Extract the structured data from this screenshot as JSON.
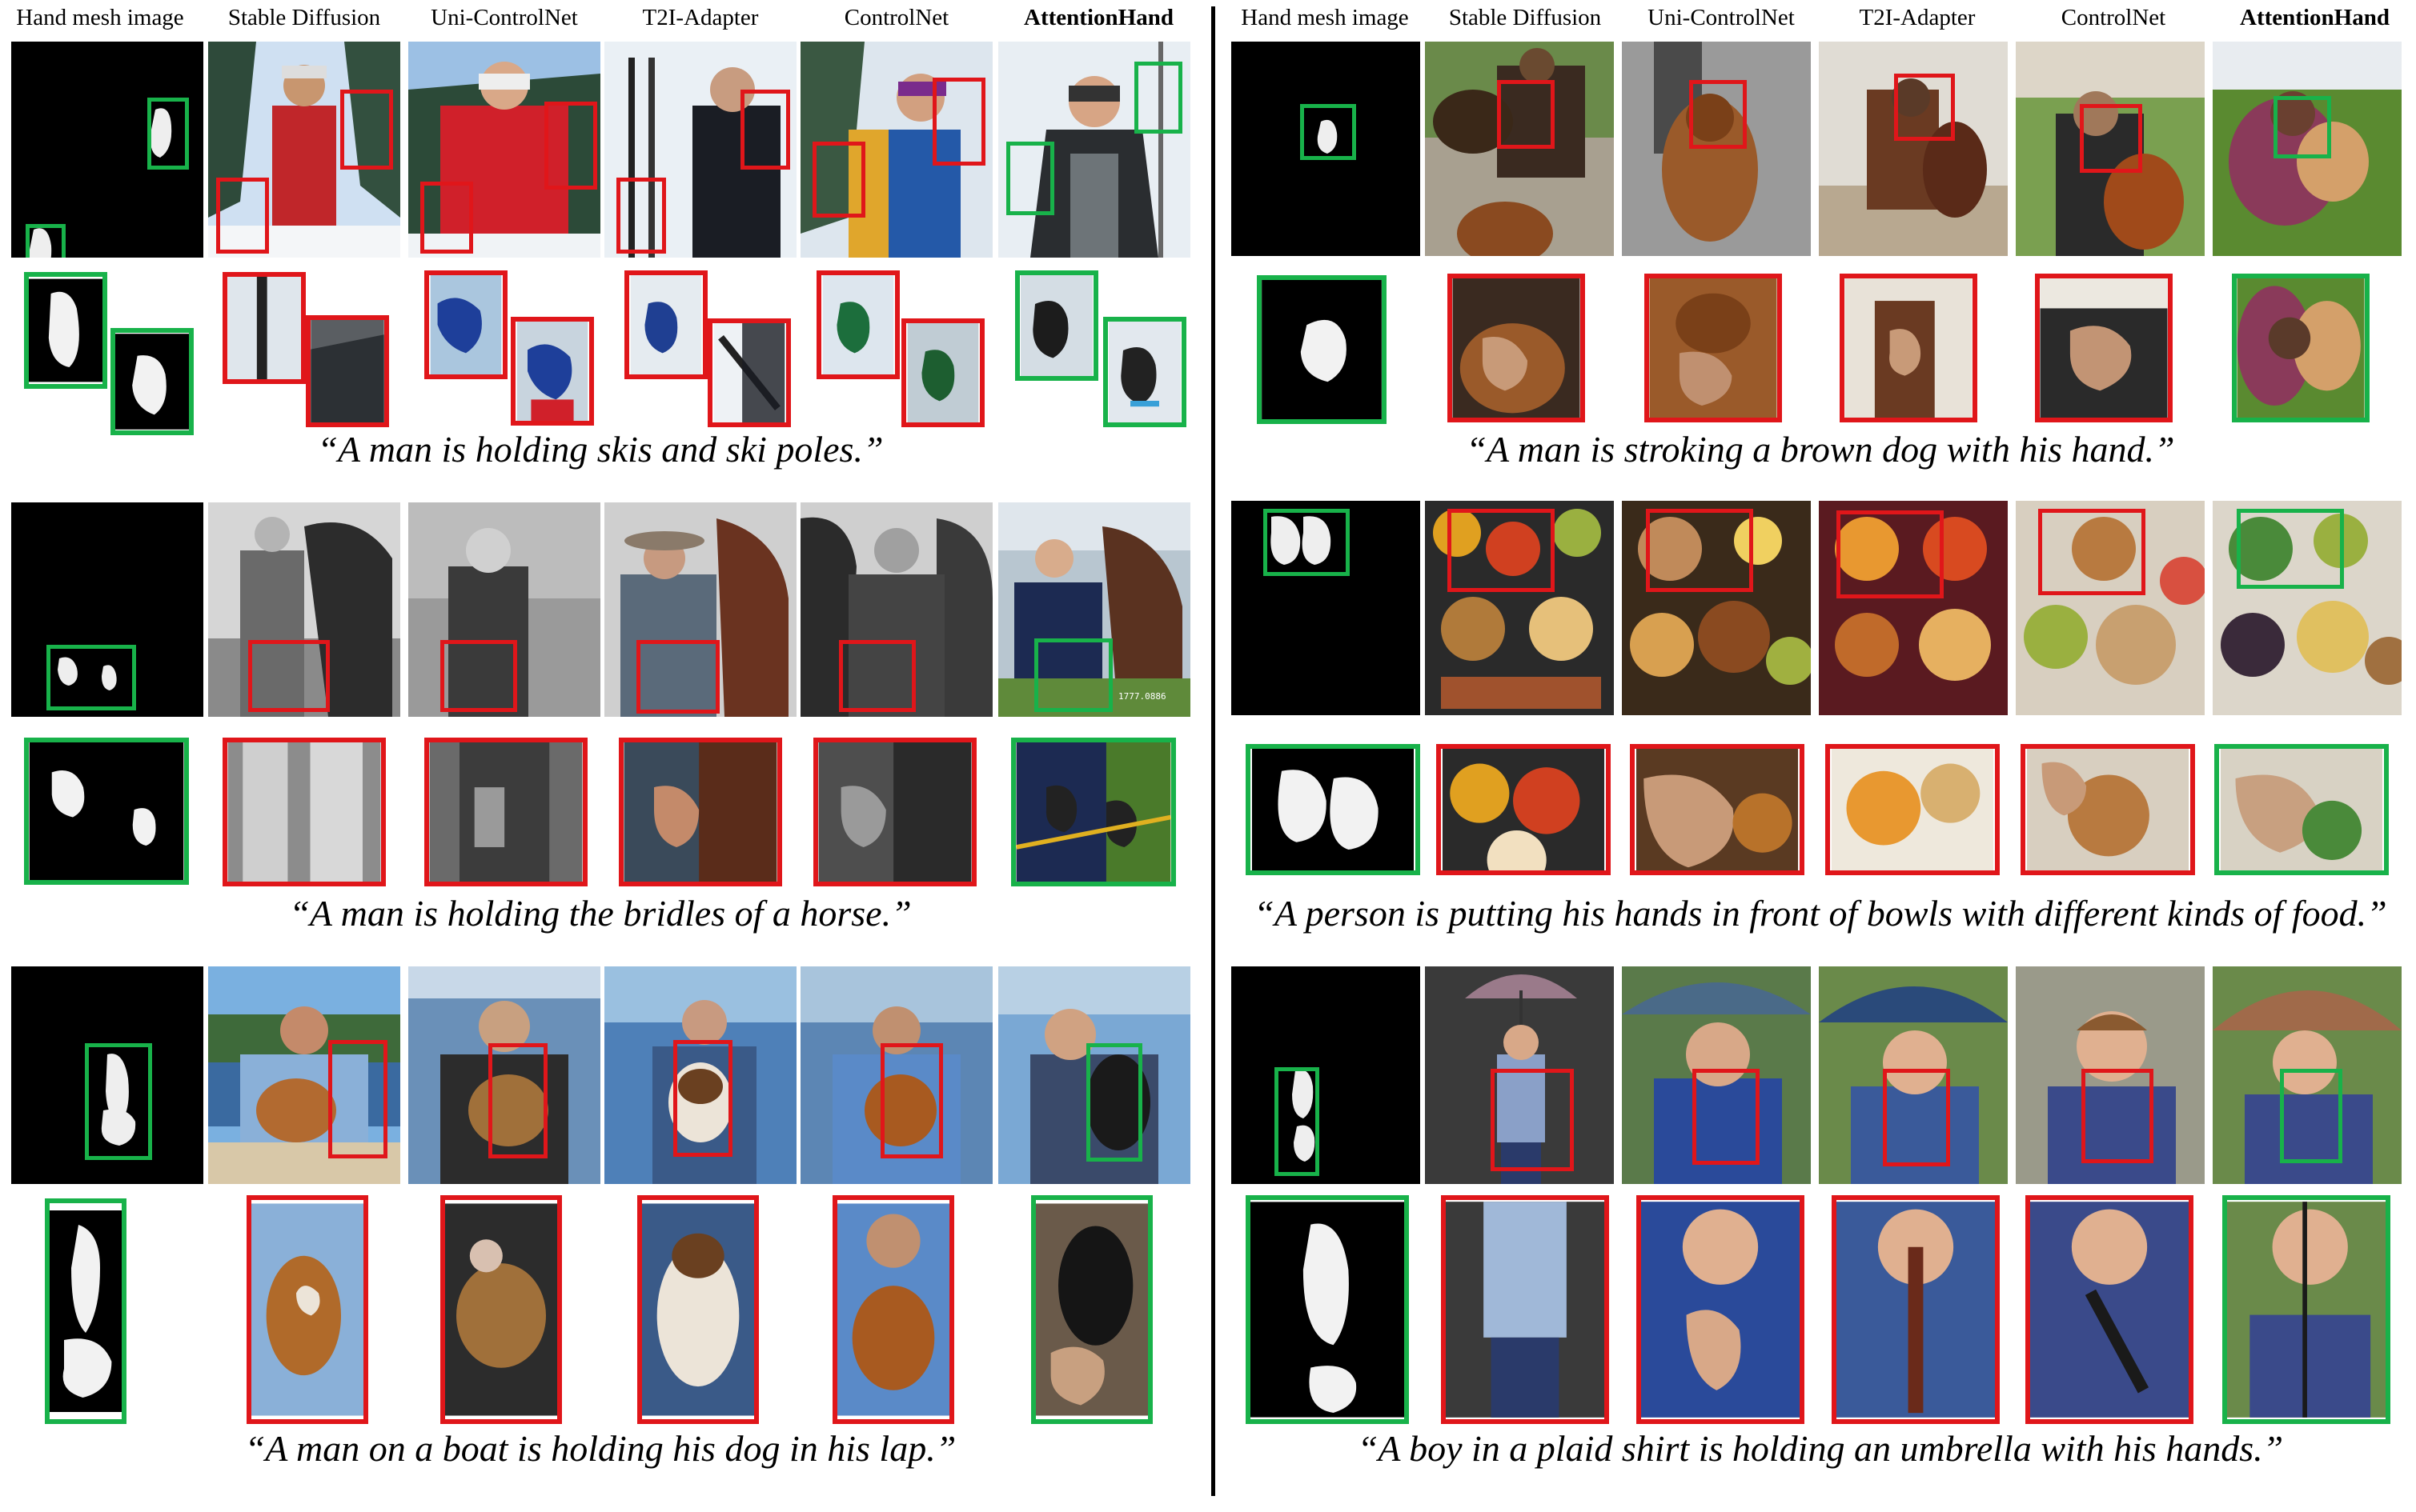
{
  "headers": [
    "Hand mesh image",
    "Stable Diffusion",
    "Uni-ControlNet",
    "T2I-Adapter",
    "ControlNet",
    "AttentionHand"
  ],
  "captions": {
    "left": [
      "“A man is holding skis and ski poles.”",
      "“A man is holding the bridles of a horse.”",
      "“A man on a boat is holding his dog in his lap.”"
    ],
    "right": [
      "“A man is stroking a brown dog with his hand.”",
      "“A person is putting his hands in front of bowls with different kinds of food.”",
      "“A boy in a plaid shirt is holding an umbrella with his hands.”"
    ]
  },
  "watermark": "1777.0886",
  "colors": {
    "failure_box": "#e0161a",
    "success_box": "#18b24a",
    "mesh_background": "#000000"
  }
}
